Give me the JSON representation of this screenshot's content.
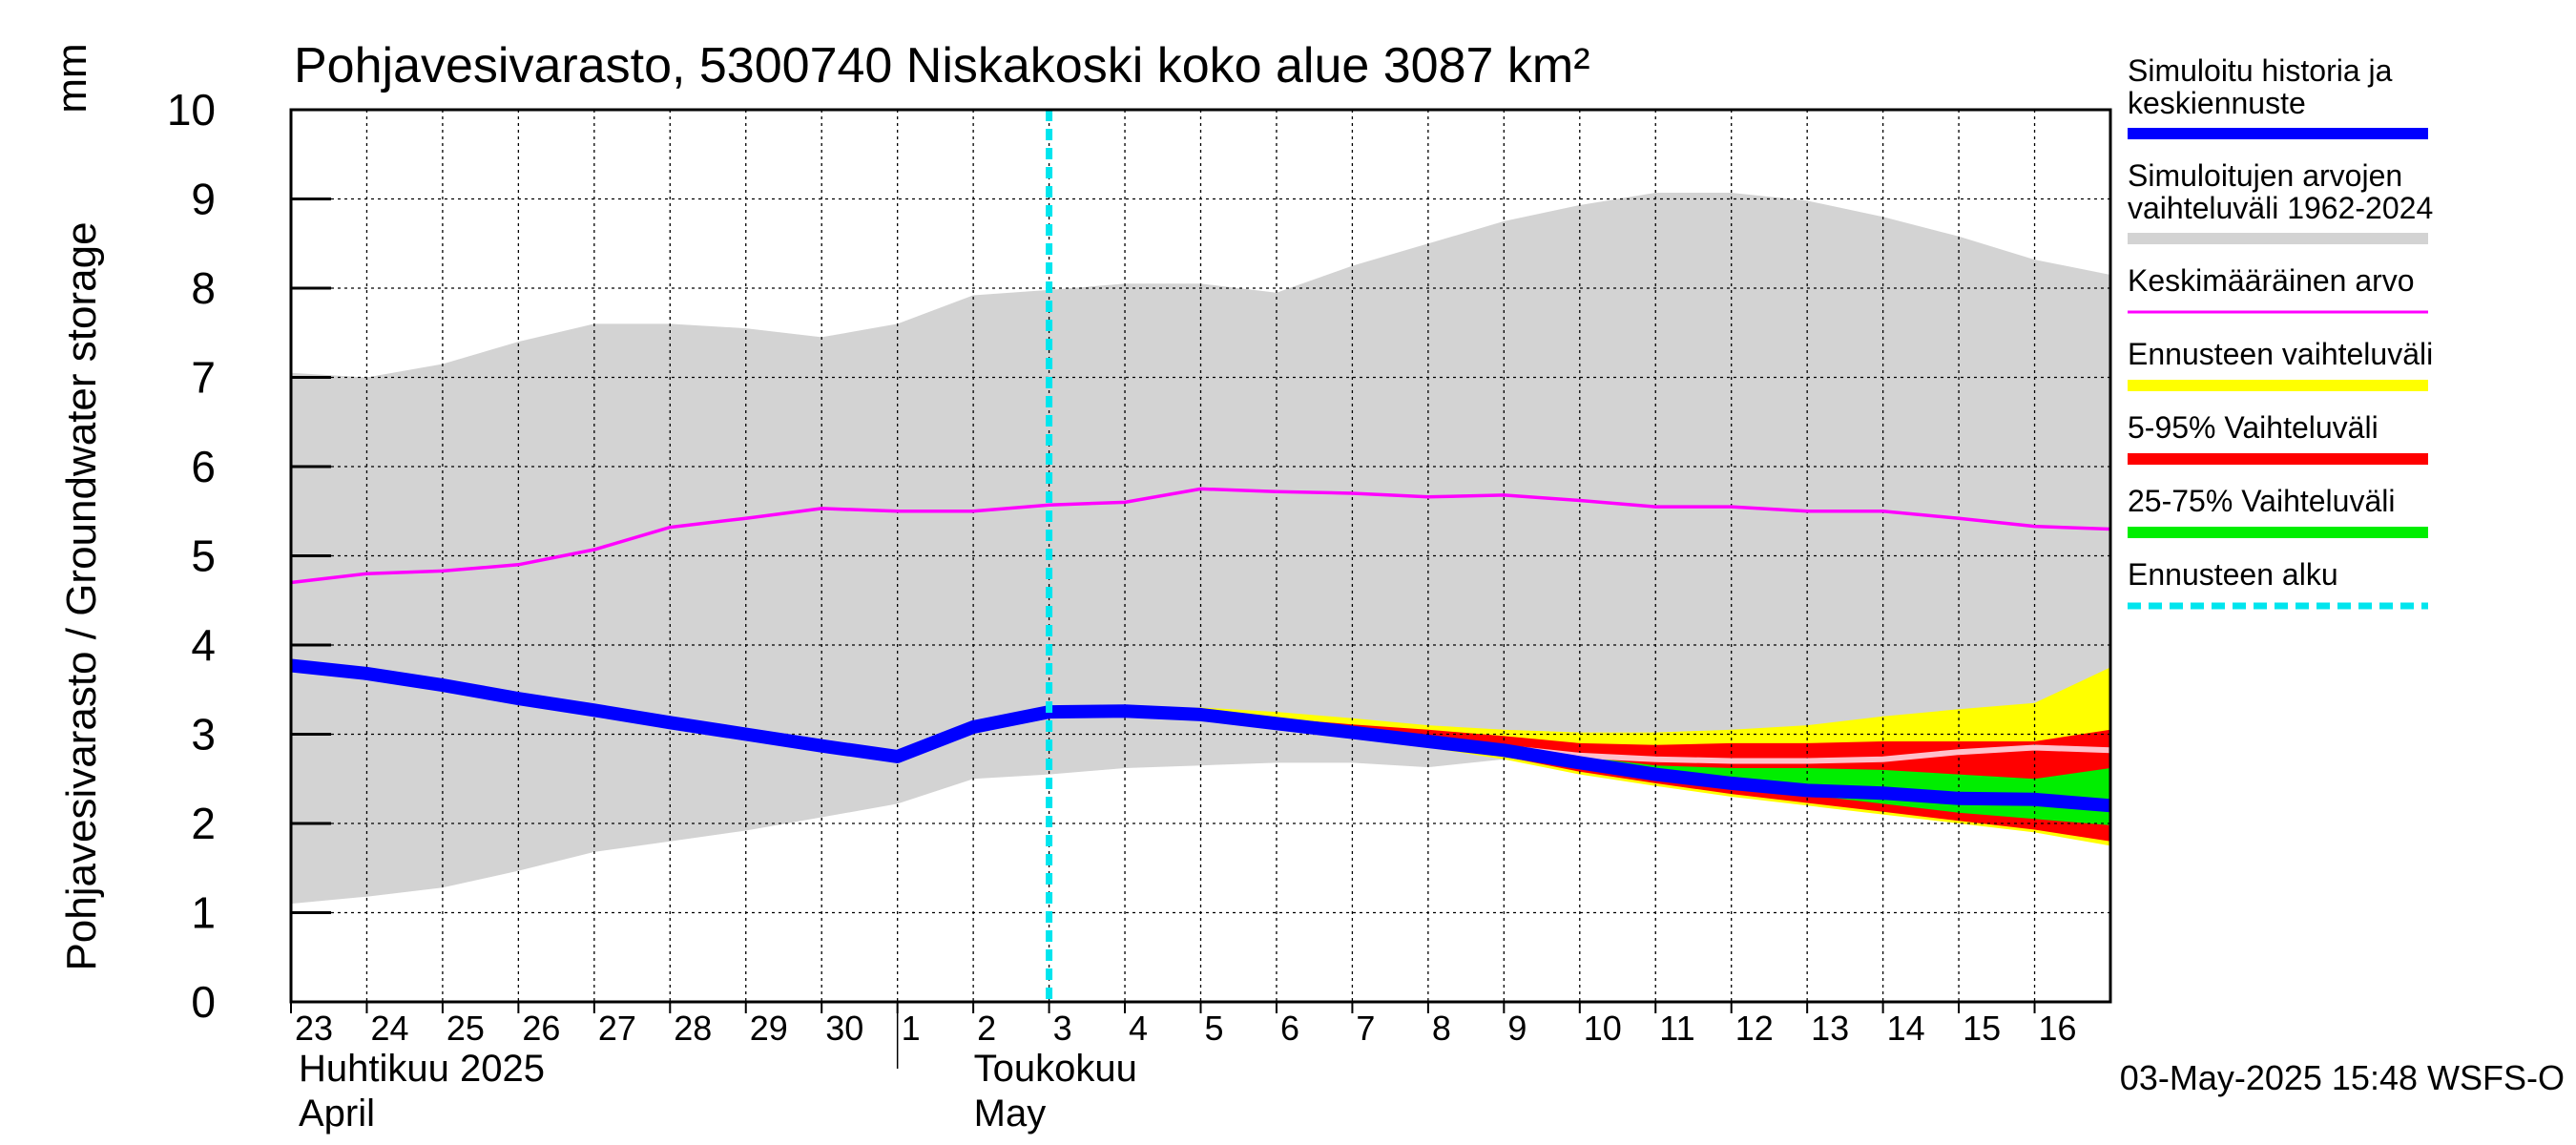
{
  "chart_data": {
    "type": "area",
    "title": "Pohjavesivarasto, 5300740 Niskakoski koko alue 3087 km²",
    "ylabel": "Pohjavesivarasto / Groundwater storage",
    "yunit": "mm",
    "ylim": [
      0,
      10
    ],
    "yticks": [
      "0",
      "1",
      "2",
      "3",
      "4",
      "5",
      "6",
      "7",
      "8",
      "9",
      "10"
    ],
    "xlim": [
      "2025-04-23",
      "2025-05-17"
    ],
    "xticks": [
      "23",
      "24",
      "25",
      "26",
      "27",
      "28",
      "29",
      "30",
      "1",
      "2",
      "3",
      "4",
      "5",
      "6",
      "7",
      "8",
      "9",
      "10",
      "11",
      "12",
      "13",
      "14",
      "15",
      "16"
    ],
    "month_labels": [
      {
        "fi": "Huhtikuu  2025",
        "en": "April"
      },
      {
        "fi": "Toukokuu",
        "en": "May"
      }
    ],
    "grid": true,
    "legend_position": "right",
    "forecast_start": "2025-05-03",
    "footer": "03-May-2025 15:48 WSFS-O",
    "colors": {
      "history": "#0000ff",
      "range": "#d3d3d3",
      "mean": "#ff00ff",
      "forecast_range": "#ffff00",
      "p5_95": "#ff0000",
      "p25_75": "#00ee00",
      "median": "#ffc0cb",
      "forecast_start": "#00e5ee"
    },
    "legend": [
      {
        "label": "Simuloitu historia ja keskiennuste",
        "line1": "Simuloitu historia ja",
        "line2": "keskiennuste",
        "color": "#0000ff",
        "style": "thick"
      },
      {
        "label": "Simuloitujen arvojen vaihteluväli 1962-2024",
        "line1": "Simuloitujen arvojen",
        "line2": "vaihteluväli 1962-2024",
        "color": "#d3d3d3",
        "style": "thick"
      },
      {
        "label": "Keskimääräinen arvo",
        "line1": "Keskimääräinen arvo",
        "line2": "",
        "color": "#ff00ff",
        "style": "thin"
      },
      {
        "label": "Ennusteen vaihteluväli",
        "line1": "Ennusteen vaihteluväli",
        "line2": "",
        "color": "#ffff00",
        "style": "thick"
      },
      {
        "label": "5-95% Vaihteluväli",
        "line1": "5-95% Vaihteluväli",
        "line2": "",
        "color": "#ff0000",
        "style": "thick"
      },
      {
        "label": "25-75% Vaihteluväli",
        "line1": "25-75% Vaihteluväli",
        "line2": "",
        "color": "#00ee00",
        "style": "thick"
      },
      {
        "label": "Ennusteen alku",
        "line1": "Ennusteen alku",
        "line2": "",
        "color": "#00e5ee",
        "style": "dashed"
      }
    ],
    "series": {
      "range_band": {
        "x": [
          "2025-04-23",
          "2025-04-24",
          "2025-04-25",
          "2025-04-26",
          "2025-04-27",
          "2025-04-28",
          "2025-04-29",
          "2025-04-30",
          "2025-05-01",
          "2025-05-02",
          "2025-05-03",
          "2025-05-04",
          "2025-05-05",
          "2025-05-06",
          "2025-05-07",
          "2025-05-08",
          "2025-05-09",
          "2025-05-10",
          "2025-05-11",
          "2025-05-12",
          "2025-05-13",
          "2025-05-14",
          "2025-05-15",
          "2025-05-16",
          "2025-05-17"
        ],
        "upper": [
          7.05,
          7.0,
          7.15,
          7.4,
          7.6,
          7.6,
          7.55,
          7.45,
          7.6,
          7.92,
          7.98,
          8.05,
          8.05,
          7.95,
          8.25,
          8.5,
          8.75,
          8.93,
          9.07,
          9.07,
          8.98,
          8.8,
          8.58,
          8.32,
          8.15
        ],
        "lower": [
          1.1,
          1.18,
          1.28,
          1.47,
          1.68,
          1.8,
          1.92,
          2.07,
          2.22,
          2.5,
          2.55,
          2.62,
          2.65,
          2.68,
          2.68,
          2.63,
          2.72,
          2.78,
          2.82,
          2.85,
          2.85,
          2.85,
          2.85,
          2.85,
          2.85
        ]
      },
      "mean": {
        "name": "Keskimääräinen arvo",
        "x": [
          "2025-04-23",
          "2025-04-24",
          "2025-04-25",
          "2025-04-26",
          "2025-04-27",
          "2025-04-28",
          "2025-04-29",
          "2025-04-30",
          "2025-05-01",
          "2025-05-02",
          "2025-05-03",
          "2025-05-04",
          "2025-05-05",
          "2025-05-06",
          "2025-05-07",
          "2025-05-08",
          "2025-05-09",
          "2025-05-10",
          "2025-05-11",
          "2025-05-12",
          "2025-05-13",
          "2025-05-14",
          "2025-05-15",
          "2025-05-16",
          "2025-05-17"
        ],
        "values": [
          4.7,
          4.8,
          4.83,
          4.9,
          5.07,
          5.32,
          5.42,
          5.53,
          5.5,
          5.5,
          5.57,
          5.6,
          5.75,
          5.72,
          5.7,
          5.66,
          5.68,
          5.62,
          5.55,
          5.55,
          5.5,
          5.5,
          5.42,
          5.33,
          5.3
        ]
      },
      "history": {
        "name": "Simuloitu historia ja keskiennuste",
        "x": [
          "2025-04-23",
          "2025-04-24",
          "2025-04-25",
          "2025-04-26",
          "2025-04-27",
          "2025-04-28",
          "2025-04-29",
          "2025-04-30",
          "2025-05-01",
          "2025-05-02",
          "2025-05-03",
          "2025-05-04",
          "2025-05-05",
          "2025-05-06",
          "2025-05-07",
          "2025-05-08",
          "2025-05-09",
          "2025-05-10",
          "2025-05-11",
          "2025-05-12",
          "2025-05-13",
          "2025-05-14",
          "2025-05-15",
          "2025-05-16",
          "2025-05-17"
        ],
        "values": [
          3.77,
          3.68,
          3.55,
          3.4,
          3.27,
          3.13,
          3.0,
          2.87,
          2.75,
          3.08,
          3.25,
          3.26,
          3.22,
          3.12,
          3.02,
          2.92,
          2.82,
          2.68,
          2.55,
          2.45,
          2.37,
          2.34,
          2.28,
          2.27,
          2.2
        ]
      },
      "forecast_median": {
        "x": [
          "2025-05-09",
          "2025-05-10",
          "2025-05-11",
          "2025-05-12",
          "2025-05-13",
          "2025-05-14",
          "2025-05-15",
          "2025-05-16",
          "2025-05-17"
        ],
        "values": [
          2.85,
          2.76,
          2.72,
          2.7,
          2.7,
          2.72,
          2.8,
          2.85,
          2.82
        ]
      },
      "forecast_range": {
        "x": [
          "2025-05-03",
          "2025-05-04",
          "2025-05-05",
          "2025-05-06",
          "2025-05-07",
          "2025-05-08",
          "2025-05-09",
          "2025-05-10",
          "2025-05-11",
          "2025-05-12",
          "2025-05-13",
          "2025-05-14",
          "2025-05-15",
          "2025-05-16",
          "2025-05-17"
        ],
        "upper": [
          3.27,
          3.28,
          3.3,
          3.25,
          3.18,
          3.1,
          3.05,
          3.02,
          3.02,
          3.05,
          3.1,
          3.2,
          3.28,
          3.35,
          3.75
        ],
        "lower": [
          3.23,
          3.23,
          3.17,
          3.07,
          2.97,
          2.85,
          2.72,
          2.55,
          2.42,
          2.3,
          2.2,
          2.1,
          2.0,
          1.9,
          1.75
        ]
      },
      "p5_95": {
        "x": [
          "2025-05-03",
          "2025-05-04",
          "2025-05-05",
          "2025-05-06",
          "2025-05-07",
          "2025-05-08",
          "2025-05-09",
          "2025-05-10",
          "2025-05-11",
          "2025-05-12",
          "2025-05-13",
          "2025-05-14",
          "2025-05-15",
          "2025-05-16",
          "2025-05-17"
        ],
        "upper": [
          3.26,
          3.27,
          3.26,
          3.18,
          3.11,
          3.05,
          2.98,
          2.9,
          2.88,
          2.9,
          2.9,
          2.92,
          2.92,
          2.92,
          3.05
        ],
        "lower": [
          3.24,
          3.24,
          3.19,
          3.09,
          2.99,
          2.87,
          2.75,
          2.58,
          2.45,
          2.33,
          2.23,
          2.13,
          2.03,
          1.93,
          1.8
        ]
      },
      "p25_75": {
        "x": [
          "2025-05-03",
          "2025-05-04",
          "2025-05-05",
          "2025-05-06",
          "2025-05-07",
          "2025-05-08",
          "2025-05-09",
          "2025-05-10",
          "2025-05-11",
          "2025-05-12",
          "2025-05-13",
          "2025-05-14",
          "2025-05-15",
          "2025-05-16",
          "2025-05-17"
        ],
        "upper": [
          3.25,
          3.26,
          3.23,
          3.14,
          3.05,
          2.96,
          2.88,
          2.75,
          2.65,
          2.62,
          2.62,
          2.6,
          2.55,
          2.5,
          2.62
        ],
        "lower": [
          3.24,
          3.25,
          3.21,
          3.11,
          3.01,
          2.9,
          2.78,
          2.65,
          2.52,
          2.42,
          2.32,
          2.22,
          2.12,
          2.05,
          1.98
        ]
      }
    }
  }
}
